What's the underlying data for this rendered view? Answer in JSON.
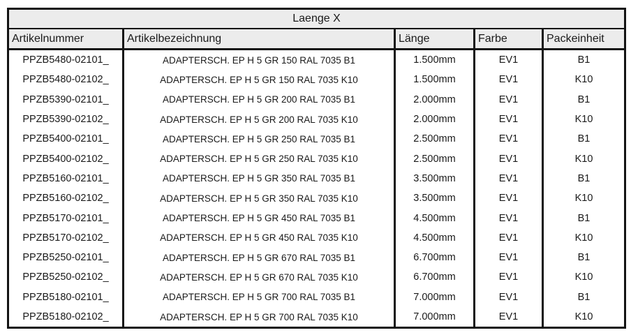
{
  "table": {
    "title": "Laenge X",
    "headers": [
      "Artikelnummer",
      "Artikelbezeichnung",
      "Länge",
      "Farbe",
      "Packeinheit"
    ],
    "rows": [
      [
        "PPZB5480-02101_",
        "ADAPTERSCH. EP H 5 GR 150 RAL 7035 B1",
        "1.500mm",
        "EV1",
        "B1"
      ],
      [
        "PPZB5480-02102_",
        "ADAPTERSCH. EP H 5 GR 150 RAL 7035 K10",
        "1.500mm",
        "EV1",
        "K10"
      ],
      [
        "PPZB5390-02101_",
        "ADAPTERSCH. EP H 5 GR 200 RAL 7035 B1",
        "2.000mm",
        "EV1",
        "B1"
      ],
      [
        "PPZB5390-02102_",
        "ADAPTERSCH. EP H 5 GR 200 RAL 7035 K10",
        "2.000mm",
        "EV1",
        "K10"
      ],
      [
        "PPZB5400-02101_",
        "ADAPTERSCH. EP H 5 GR 250 RAL 7035 B1",
        "2.500mm",
        "EV1",
        "B1"
      ],
      [
        "PPZB5400-02102_",
        "ADAPTERSCH. EP H 5 GR 250 RAL 7035 K10",
        "2.500mm",
        "EV1",
        "K10"
      ],
      [
        "PPZB5160-02101_",
        "ADAPTERSCH. EP H 5 GR 350 RAL 7035 B1",
        "3.500mm",
        "EV1",
        "B1"
      ],
      [
        "PPZB5160-02102_",
        "ADAPTERSCH. EP H 5 GR 350 RAL 7035 K10",
        "3.500mm",
        "EV1",
        "K10"
      ],
      [
        "PPZB5170-02101_",
        "ADAPTERSCH. EP H 5 GR 450 RAL 7035 B1",
        "4.500mm",
        "EV1",
        "B1"
      ],
      [
        "PPZB5170-02102_",
        "ADAPTERSCH. EP H 5 GR 450 RAL 7035 K10",
        "4.500mm",
        "EV1",
        "K10"
      ],
      [
        "PPZB5250-02101_",
        "ADAPTERSCH. EP H 5 GR 670 RAL 7035 B1",
        "6.700mm",
        "EV1",
        "B1"
      ],
      [
        "PPZB5250-02102_",
        "ADAPTERSCH. EP H 5 GR 670 RAL 7035 K10",
        "6.700mm",
        "EV1",
        "K10"
      ],
      [
        "PPZB5180-02101_",
        "ADAPTERSCH. EP H 5 GR 700 RAL 7035 B1",
        "7.000mm",
        "EV1",
        "B1"
      ],
      [
        "PPZB5180-02102_",
        "ADAPTERSCH. EP H 5 GR 700 RAL 7035 K10",
        "7.000mm",
        "EV1",
        "K10"
      ]
    ]
  },
  "colors": {
    "header_bg": "#ececec",
    "border": "#141414",
    "text": "#1a1a1a",
    "page_bg": "#ffffff"
  }
}
